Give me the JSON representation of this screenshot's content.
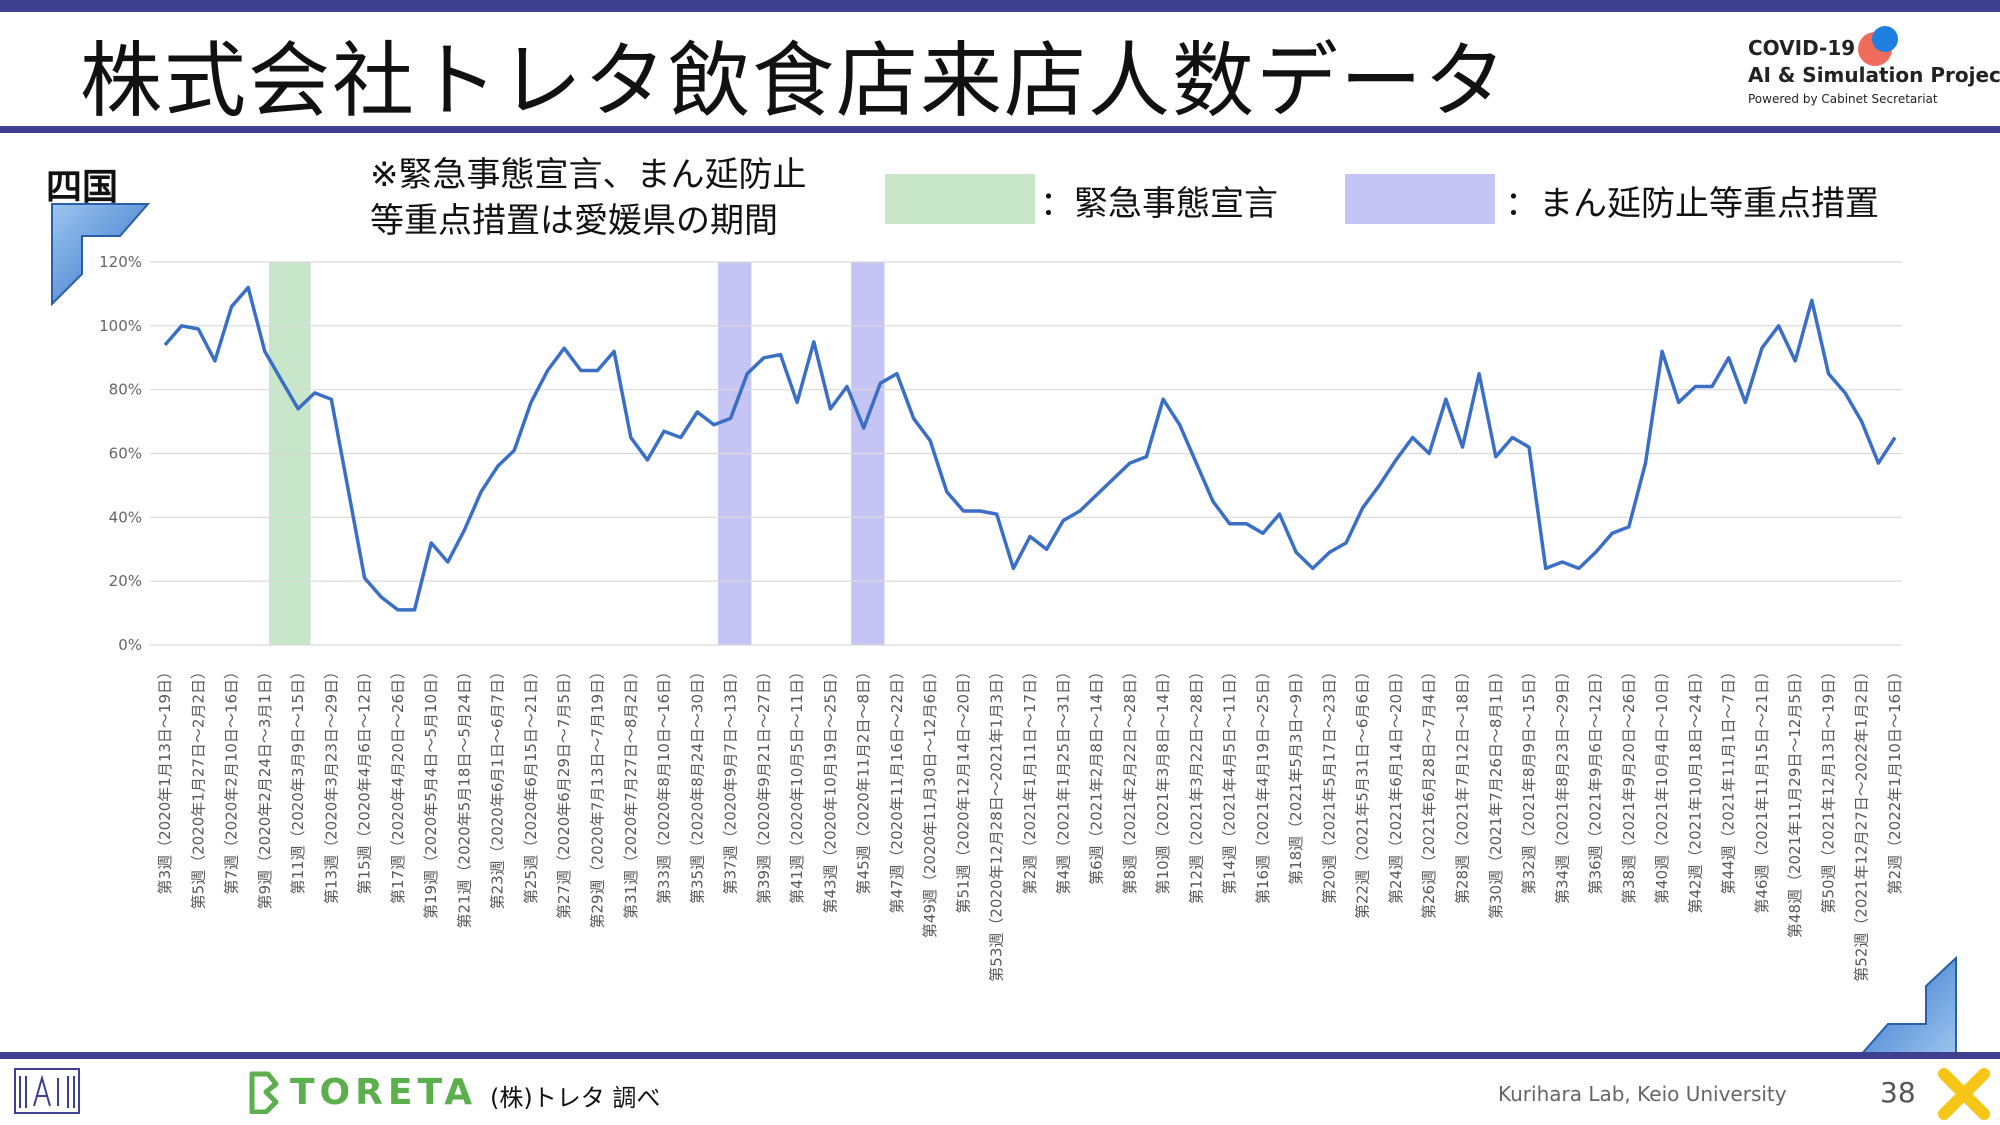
{
  "header": {
    "title": "株式会社トレタ飲食店来店人数データ",
    "logo_line1": "COVID-19",
    "logo_line2": "AI & Simulation Project",
    "logo_line3": "Powered by Cabinet Secretariat"
  },
  "panel": {
    "region": "四国",
    "note_line1": "※緊急事態宣言、まん延防止",
    "note_line2": "等重点措置は愛媛県の期間",
    "legend_emergency": "：緊急事態宣言",
    "legend_semi": "：まん延防止等重点措置"
  },
  "colors": {
    "line": "#3b6fc6",
    "emergency": "#c8e6c9",
    "semi_emergency": "#c5c5f5",
    "accent": "#3f3f8f"
  },
  "chart_data": {
    "type": "line",
    "ylim": [
      0,
      120
    ],
    "yticks": [
      "0%",
      "20%",
      "40%",
      "60%",
      "80%",
      "100%",
      "120%"
    ],
    "grid": true,
    "x_labels": [
      "第3週（2020年1月13日～19日）",
      "第5週（2020年1月27日～2月2日）",
      "第7週（2020年2月10日～16日）",
      "第9週（2020年2月24日～3月1日）",
      "第11週（2020年3月9日～15日）",
      "第13週（2020年3月23日～29日）",
      "第15週（2020年4月6日～12日）",
      "第17週（2020年4月20日～26日）",
      "第19週（2020年5月4日～5月10日）",
      "第21週（2020年5月18日～5月24日）",
      "第23週（2020年6月1日～6月7日）",
      "第25週（2020年6月15日～21日）",
      "第27週（2020年6月29日～7月5日）",
      "第29週（2020年7月13日～7月19日）",
      "第31週（2020年7月27日～8月2日）",
      "第33週（2020年8月10日～16日）",
      "第35週（2020年8月24日～30日）",
      "第37週（2020年9月7日～13日）",
      "第39週（2020年9月21日～27日）",
      "第41週（2020年10月5日～11日）",
      "第43週（2020年10月19日～25日）",
      "第45週（2020年11月2日～8日）",
      "第47週（2020年11月16日～22日）",
      "第49週（2020年11月30日～12月6日）",
      "第51週（2020年12月14日～20日）",
      "第53週（2020年12月28日～2021年1月3日）",
      "第2週（2021年1月11日～17日）",
      "第4週（2021年1月25日～31日）",
      "第6週（2021年2月8日～14日）",
      "第8週（2021年2月22日～28日）",
      "第10週（2021年3月8日～14日）",
      "第12週（2021年3月22日～28日）",
      "第14週（2021年4月5日～11日）",
      "第16週（2021年4月19日～25日）",
      "第18週（2021年5月3日～9日）",
      "第20週（2021年5月17日～23日）",
      "第22週（2021年5月31日～6月6日）",
      "第24週（2021年6月14日～20日）",
      "第26週（2021年6月28日～7月4日）",
      "第28週（2021年7月12日～18日）",
      "第30週（2021年7月26日～8月1日）",
      "第32週（2021年8月9日～15日）",
      "第34週（2021年8月23日～29日）",
      "第36週（2021年9月6日～12日）",
      "第38週（2021年9月20日～26日）",
      "第40週（2021年10月4日～10日）",
      "第42週（2021年10月18日～24日）",
      "第44週（2021年11月1日～7日）",
      "第46週（2021年11月15日～21日）",
      "第48週（2021年11月29日～12月5日）",
      "第50週（2021年12月13日～19日）",
      "第52週（2021年12月27日～2022年1月2日）",
      "第2週（2022年1月10日～16日）"
    ],
    "series": [
      {
        "values": [
          94,
          100,
          99,
          89,
          106,
          112,
          92,
          83,
          74,
          79,
          77,
          49,
          21,
          15,
          11,
          11,
          32,
          26,
          36,
          48,
          56,
          61,
          76,
          86,
          93,
          86,
          86,
          92,
          65,
          58,
          67,
          65,
          73,
          69,
          71,
          85,
          90,
          91,
          76,
          95,
          74,
          81,
          68,
          82,
          85,
          71,
          64,
          48,
          42,
          42,
          41,
          24,
          34,
          30,
          39,
          42,
          47,
          52,
          57,
          59,
          77,
          69,
          57,
          45,
          38,
          38,
          35,
          41,
          29,
          24,
          29,
          32,
          43,
          50,
          58,
          65,
          60,
          77,
          62,
          85,
          59,
          65,
          62,
          24,
          26,
          24,
          29,
          35,
          37,
          57,
          92,
          76,
          81,
          81,
          90,
          76,
          93,
          100,
          89,
          108,
          85,
          79,
          70,
          57,
          65
        ]
      }
    ],
    "emergency_periods": [
      [
        6.25,
        8.75
      ]
    ],
    "semi_emergency_periods": [
      [
        33.25,
        35.25
      ],
      [
        41.25,
        43.25
      ]
    ]
  },
  "footer": {
    "brand": "TORETA",
    "source": "(株)トレタ 調べ",
    "credit": "Kurihara Lab, Keio University",
    "page_number": "38"
  }
}
